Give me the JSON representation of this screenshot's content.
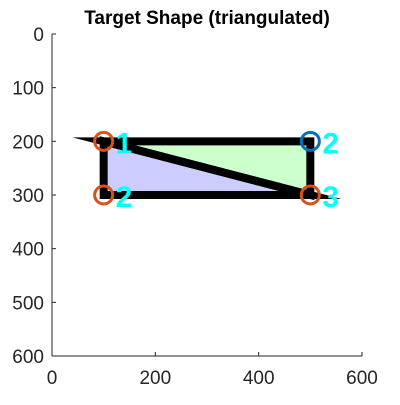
{
  "chart_data": {
    "type": "patch",
    "title": "Target Shape (triangulated)",
    "xlabel": "",
    "ylabel": "",
    "xlim": [
      0,
      600
    ],
    "ylim": [
      0,
      600
    ],
    "y_axis_reversed": true,
    "grid": false,
    "legend": "none",
    "x_ticks": [
      0,
      200,
      400,
      600
    ],
    "y_ticks": [
      0,
      100,
      200,
      300,
      400,
      500,
      600
    ],
    "vertices": [
      {
        "x": 100,
        "y": 200,
        "marker_color": "#D95319",
        "label": "1",
        "label_color": "#00FFFF"
      },
      {
        "x": 500,
        "y": 200,
        "marker_color": "#0072BD",
        "label": "2",
        "label_color": "#00FFFF"
      },
      {
        "x": 100,
        "y": 300,
        "marker_color": "#D95319",
        "label": "2",
        "label_color": "#00FFFF"
      },
      {
        "x": 500,
        "y": 300,
        "marker_color": "#D95319",
        "label": "3",
        "label_color": "#00FFFF"
      }
    ],
    "triangles": [
      {
        "points": [
          [
            100,
            200
          ],
          [
            500,
            200
          ],
          [
            500,
            300
          ]
        ],
        "fill": "#CCFFCC"
      },
      {
        "points": [
          [
            100,
            200
          ],
          [
            500,
            300
          ],
          [
            100,
            300
          ]
        ],
        "fill": "#CCCCFF"
      }
    ],
    "edge_color": "#000000"
  }
}
